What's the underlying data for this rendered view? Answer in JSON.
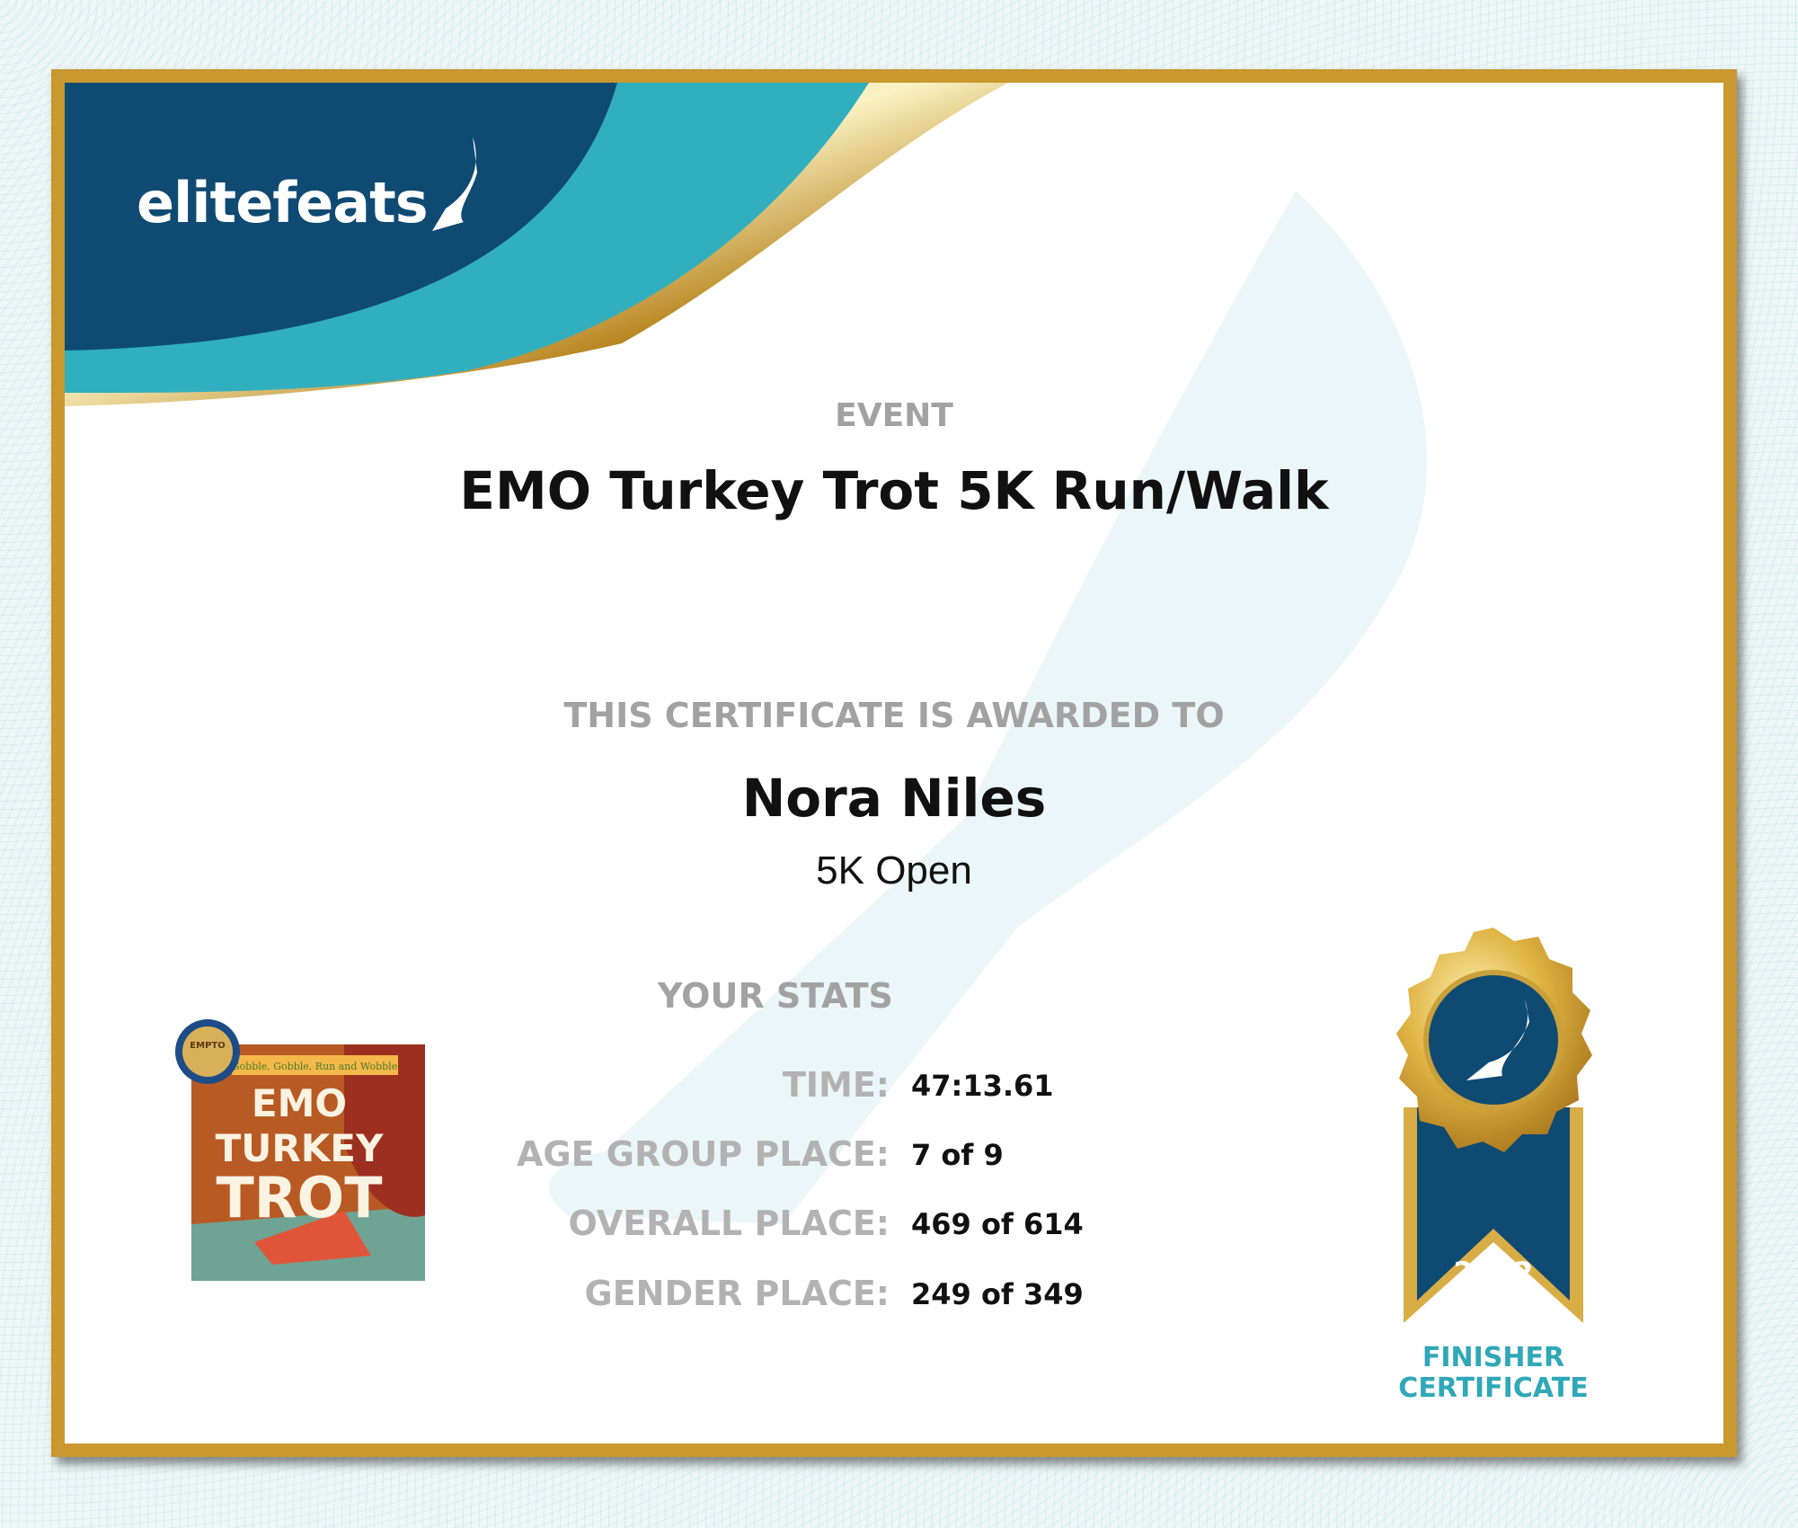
{
  "brand": {
    "logo_text": "elitefeats"
  },
  "certificate": {
    "event_label": "EVENT",
    "event_name": "EMO Turkey Trot 5K Run/Walk",
    "awarded_label": "THIS CERTIFICATE IS AWARDED TO",
    "participant_name": "Nora Niles",
    "division": "5K Open",
    "stats_label": "YOUR STATS",
    "stats": [
      {
        "label": "TIME:",
        "value": "47:13.61"
      },
      {
        "label": "AGE GROUP PLACE:",
        "value": "7 of 9"
      },
      {
        "label": "OVERALL PLACE:",
        "value": "469 of 614"
      },
      {
        "label": "GENDER PLACE:",
        "value": "249 of 349"
      }
    ],
    "event_image": {
      "tagline": "Gobble, Gobble, Run and Wobble",
      "line1": "EMO",
      "line2": "TURKEY",
      "line3": "TROT",
      "seal_text": "EMPTO"
    },
    "medal": {
      "year": "2022",
      "caption_line1": "FINISHER",
      "caption_line2": "CERTIFICATE"
    }
  },
  "colors": {
    "navy": "#0f4a73",
    "teal": "#31afbf",
    "gold": "#c9982e"
  }
}
